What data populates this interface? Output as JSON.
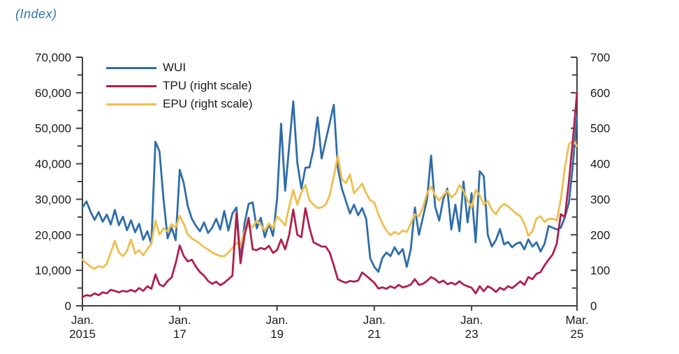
{
  "page": {
    "background": "#FFFFFF"
  },
  "chart_data": {
    "type": "line",
    "title": "(Index)",
    "title_color": "#2E74B5",
    "grid": false,
    "legend_position": "top-left-inside",
    "x": {
      "start": "2015-01",
      "end": "2025-03",
      "frequency": "monthly",
      "count": 123
    },
    "x_ticks": [
      {
        "month_index": 0,
        "line1": "Jan.",
        "line2": "2015"
      },
      {
        "month_index": 24,
        "line1": "Jan.",
        "line2": "17"
      },
      {
        "month_index": 48,
        "line1": "Jan.",
        "line2": "19"
      },
      {
        "month_index": 72,
        "line1": "Jan.",
        "line2": "21"
      },
      {
        "month_index": 96,
        "line1": "Jan.",
        "line2": "23"
      },
      {
        "month_index": 122,
        "line1": "Mar.",
        "line2": "25"
      }
    ],
    "left_axis": {
      "min": 0,
      "max": 70000,
      "major_step": 10000,
      "minor_step": 5000
    },
    "right_axis": {
      "min": 0,
      "max": 700,
      "major_step": 100,
      "minor_step": 50
    },
    "axis_color": "#404040",
    "label_color": "#1a1a1a",
    "series": [
      {
        "name": "WUI",
        "scale": "left",
        "color": "#2E6DA8",
        "values": [
          27700,
          29400,
          26500,
          24200,
          26400,
          23700,
          25700,
          22900,
          27000,
          22700,
          25100,
          21300,
          24100,
          20700,
          23100,
          18600,
          21000,
          17400,
          46200,
          43500,
          30000,
          19000,
          22000,
          18500,
          38300,
          34500,
          28000,
          24500,
          22500,
          21000,
          23500,
          20500,
          22000,
          24500,
          21500,
          26700,
          21200,
          26000,
          27700,
          12600,
          23200,
          28700,
          29100,
          21800,
          24800,
          19300,
          23200,
          19700,
          30000,
          51300,
          32400,
          45000,
          57600,
          40300,
          33000,
          38900,
          39000,
          44200,
          53100,
          41500,
          46500,
          51500,
          56600,
          38900,
          33000,
          29500,
          26000,
          28500,
          25500,
          27500,
          24500,
          13400,
          11000,
          9600,
          13500,
          15000,
          14000,
          16500,
          14500,
          16000,
          11000,
          16000,
          27700,
          20000,
          25000,
          30000,
          42300,
          28000,
          24000,
          30000,
          33000,
          21500,
          28500,
          21000,
          35000,
          23500,
          31700,
          17900,
          37900,
          36500,
          20000,
          16700,
          18500,
          21600,
          17300,
          18000,
          16500,
          17500,
          17900,
          15900,
          18700,
          16700,
          17900,
          15300,
          17500,
          22500,
          22000,
          21500,
          22000,
          25000,
          29000,
          40000,
          53200
        ]
      },
      {
        "name": "TPU (right scale)",
        "scale": "right",
        "color": "#AF1F4D",
        "values": [
          25,
          30,
          28,
          35,
          30,
          38,
          35,
          45,
          42,
          38,
          42,
          40,
          45,
          40,
          50,
          42,
          55,
          48,
          88,
          60,
          55,
          70,
          80,
          120,
          170,
          140,
          125,
          130,
          110,
          95,
          85,
          70,
          62,
          68,
          58,
          65,
          75,
          85,
          261,
          120,
          199,
          248,
          159,
          157,
          163,
          159,
          169,
          149,
          157,
          187,
          159,
          200,
          271,
          200,
          193,
          275,
          220,
          179,
          173,
          167,
          167,
          150,
          114,
          75,
          69,
          65,
          70,
          68,
          71,
          94,
          85,
          75,
          65,
          49,
          52,
          48,
          55,
          50,
          59,
          52,
          55,
          60,
          75,
          59,
          62,
          70,
          81,
          75,
          65,
          71,
          61,
          65,
          60,
          69,
          60,
          55,
          51,
          35,
          55,
          41,
          55,
          49,
          39,
          51,
          45,
          55,
          50,
          59,
          69,
          59,
          81,
          75,
          90,
          95,
          114,
          130,
          145,
          175,
          258,
          250,
          350,
          470,
          600
        ]
      },
      {
        "name": "EPU (right scale)",
        "scale": "right",
        "color": "#F0BE4E",
        "values": [
          130,
          120,
          110,
          104,
          112,
          108,
          118,
          150,
          183,
          150,
          140,
          155,
          187,
          147,
          157,
          142,
          160,
          175,
          240,
          201,
          218,
          210,
          230,
          220,
          254,
          230,
          201,
          190,
          183,
          175,
          165,
          159,
          150,
          145,
          140,
          140,
          150,
          163,
          177,
          170,
          212,
          226,
          222,
          240,
          228,
          212,
          232,
          218,
          252,
          240,
          226,
          280,
          326,
          285,
          320,
          340,
          297,
          285,
          275,
          277,
          285,
          311,
          364,
          423,
          356,
          346,
          370,
          317,
          330,
          344,
          317,
          297,
          291,
          258,
          232,
          212,
          199,
          208,
          202,
          212,
          208,
          232,
          258,
          252,
          277,
          317,
          336,
          311,
          297,
          311,
          324,
          305,
          315,
          340,
          324,
          297,
          277,
          326,
          311,
          285,
          295,
          270,
          258,
          277,
          287,
          280,
          270,
          260,
          252,
          232,
          197,
          210,
          246,
          252,
          236,
          245,
          245,
          240,
          300,
          390,
          455,
          465,
          450
        ]
      }
    ]
  }
}
